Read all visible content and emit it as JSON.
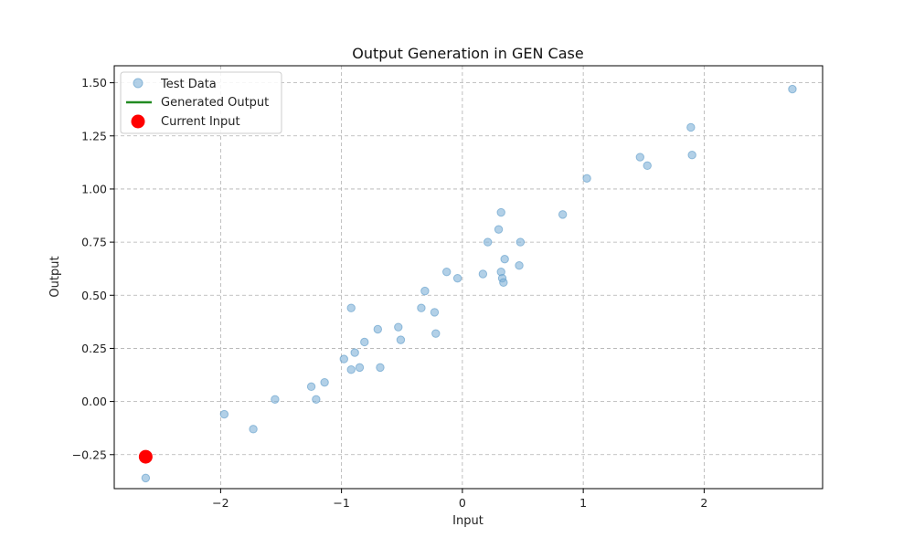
{
  "chart_data": {
    "type": "scatter",
    "title": "Output Generation in GEN Case",
    "xlabel": "Input",
    "ylabel": "Output",
    "xlim": [
      -2.88,
      2.98
    ],
    "ylim": [
      -0.41,
      1.58
    ],
    "xticks": [
      -2,
      -1,
      0,
      1,
      2
    ],
    "xtick_labels": [
      "−2",
      "−1",
      "0",
      "1",
      "2"
    ],
    "yticks": [
      -0.25,
      0.0,
      0.25,
      0.5,
      0.75,
      1.0,
      1.25,
      1.5
    ],
    "ytick_labels": [
      "−0.25",
      "0.00",
      "0.25",
      "0.50",
      "0.75",
      "1.00",
      "1.25",
      "1.50"
    ],
    "grid": true,
    "legend_position": "top-left",
    "legend": [
      "Test Data",
      "Generated Output",
      "Current Input"
    ],
    "series": [
      {
        "name": "Test Data",
        "type": "scatter",
        "color": "#7fb1d7",
        "points": [
          [
            -2.62,
            -0.36
          ],
          [
            -1.97,
            -0.06
          ],
          [
            -1.73,
            -0.13
          ],
          [
            -1.55,
            0.01
          ],
          [
            -1.25,
            0.07
          ],
          [
            -1.21,
            0.01
          ],
          [
            -1.14,
            0.09
          ],
          [
            -0.98,
            0.2
          ],
          [
            -0.92,
            0.15
          ],
          [
            -0.92,
            0.44
          ],
          [
            -0.89,
            0.23
          ],
          [
            -0.85,
            0.16
          ],
          [
            -0.81,
            0.28
          ],
          [
            -0.7,
            0.34
          ],
          [
            -0.68,
            0.16
          ],
          [
            -0.53,
            0.35
          ],
          [
            -0.51,
            0.29
          ],
          [
            -0.34,
            0.44
          ],
          [
            -0.31,
            0.52
          ],
          [
            -0.23,
            0.42
          ],
          [
            -0.22,
            0.32
          ],
          [
            -0.13,
            0.61
          ],
          [
            -0.04,
            0.58
          ],
          [
            0.17,
            0.6
          ],
          [
            0.21,
            0.75
          ],
          [
            0.3,
            0.81
          ],
          [
            0.32,
            0.89
          ],
          [
            0.32,
            0.61
          ],
          [
            0.33,
            0.58
          ],
          [
            0.34,
            0.56
          ],
          [
            0.35,
            0.67
          ],
          [
            0.47,
            0.64
          ],
          [
            0.48,
            0.75
          ],
          [
            0.83,
            0.88
          ],
          [
            1.03,
            1.05
          ],
          [
            1.47,
            1.15
          ],
          [
            1.53,
            1.11
          ],
          [
            1.89,
            1.29
          ],
          [
            1.9,
            1.16
          ],
          [
            2.73,
            1.47
          ]
        ]
      },
      {
        "name": "Generated Output",
        "type": "line",
        "color": "#228b22",
        "points": []
      },
      {
        "name": "Current Input",
        "type": "scatter",
        "color": "#ff0000",
        "points": [
          [
            -2.62,
            -0.26
          ]
        ]
      }
    ]
  }
}
